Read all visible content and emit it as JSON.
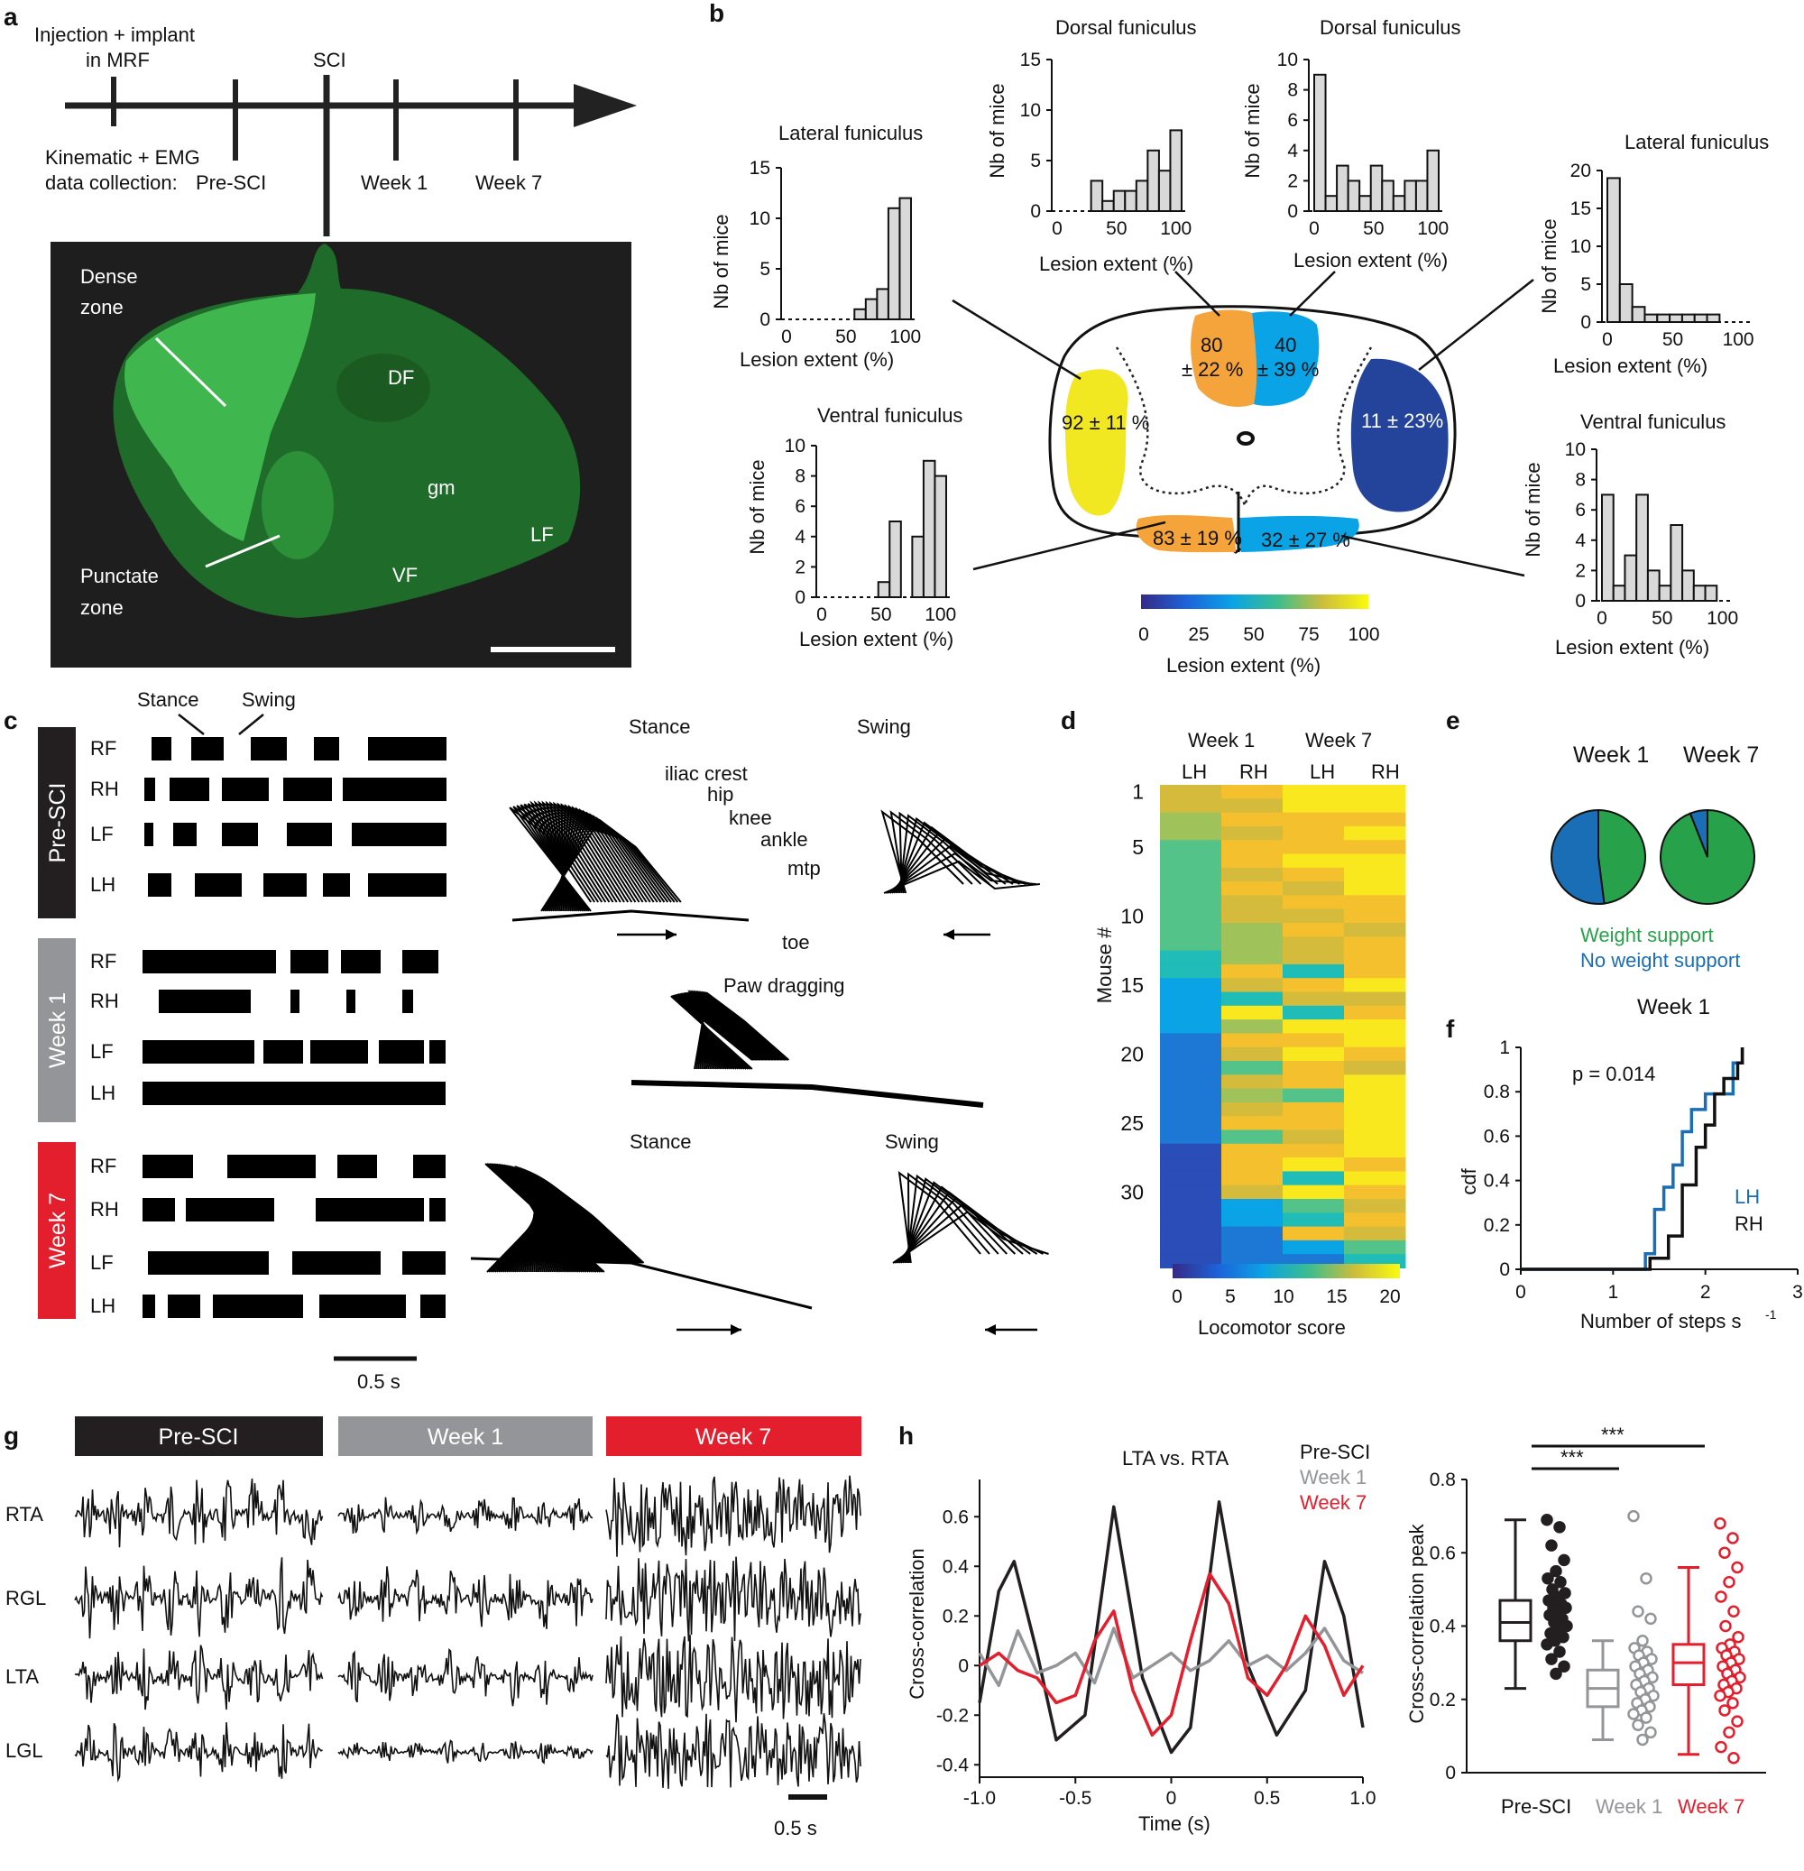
{
  "colors": {
    "pre_sci": "#231f20",
    "week1": "#939598",
    "week7": "#e31e2d",
    "weight_support": "#27a24a",
    "no_weight_support": "#1a6eb5",
    "lesion_yellow": "#f2e822",
    "lesion_orange": "#f4a43b",
    "lesion_cyan": "#0aa3e6",
    "lesion_navy": "#24449c",
    "section_green": "#3dbb4f"
  },
  "panel_a": {
    "letter": "a",
    "timeline_top_left": "Injection + implant",
    "timeline_top_left2": "in MRF",
    "timeline_sci": "SCI",
    "timeline_collection": "Kinematic + EMG",
    "timeline_collection2": "data collection:",
    "timepoints": [
      "Pre-SCI",
      "Week 1",
      "Week 7"
    ],
    "image_labels": {
      "dense": "Dense",
      "dense2": "zone",
      "punctate": "Punctate",
      "punctate2": "zone",
      "df": "DF",
      "gm": "gm",
      "lf": "LF",
      "vf": "VF"
    }
  },
  "panel_b": {
    "letter": "b",
    "hist_xlabel": "Lesion extent (%)",
    "hist_ylabel": "Nb of mice",
    "colorbar_ticks": [
      "0",
      "25",
      "50",
      "75",
      "100"
    ],
    "colorbar_label": "Lesion extent (%)",
    "region_values": {
      "left_lateral": "92 ± 11 %",
      "dorsal_left_a": "80",
      "dorsal_left_b": "± 22 %",
      "dorsal_right_a": "40",
      "dorsal_right_b": "± 39 %",
      "right_lateral": "11 ± 23%",
      "ventral_left": "83 ± 19 %",
      "ventral_right": "32 ± 27 %"
    }
  },
  "panel_c": {
    "letter": "c",
    "groups": [
      "Pre-SCI",
      "Week 1",
      "Week 7"
    ],
    "limbs": [
      "RF",
      "RH",
      "LF",
      "LH"
    ],
    "stance_label": "Stance",
    "swing_label": "Swing",
    "scale": "0.5 s",
    "stick_titles": {
      "stance1": "Stance",
      "swing1": "Swing",
      "drag": "Paw dragging",
      "stance2": "Stance",
      "swing2": "Swing"
    },
    "joints": [
      "iliac crest",
      "hip",
      "knee",
      "ankle",
      "mtp",
      "toe"
    ]
  },
  "panel_d": {
    "letter": "d",
    "col_groups": [
      "Week 1",
      "Week 7"
    ],
    "col_labels": [
      "LH",
      "RH",
      "LH",
      "RH"
    ],
    "ylabel": "Mouse #",
    "yticks": [
      "1",
      "5",
      "10",
      "15",
      "20",
      "25",
      "30"
    ],
    "colorbar_ticks": [
      "0",
      "5",
      "10",
      "15",
      "20"
    ],
    "colorbar_label": "Locomotor score"
  },
  "panel_e": {
    "letter": "e",
    "pie_titles": [
      "Week 1",
      "Week 7"
    ],
    "legend_weight": "Weight support",
    "legend_noweight": "No weight support"
  },
  "panel_f": {
    "letter": "f",
    "title": "Week 1",
    "pvalue": "p = 0.014",
    "ylabel": "cdf",
    "xlabel": "Number of steps s",
    "xlabel_sup": "-1",
    "legend_lh": "LH",
    "legend_rh": "RH",
    "xticks": [
      "0",
      "1",
      "2",
      "3"
    ],
    "yticks": [
      "0",
      "0.2",
      "0.4",
      "0.6",
      "0.8",
      "1"
    ]
  },
  "panel_g": {
    "letter": "g",
    "headers": [
      "Pre-SCI",
      "Week 1",
      "Week 7"
    ],
    "muscles": [
      "RTA",
      "RGL",
      "LTA",
      "LGL"
    ],
    "scale": "0.5 s"
  },
  "panel_h": {
    "letter": "h",
    "title": "LTA vs. RTA",
    "legend": [
      "Pre-SCI",
      "Week 1",
      "Week 7"
    ],
    "ylabel": "Cross-correlation",
    "xlabel": "Time (s)",
    "xticks": [
      "-1.0",
      "-0.5",
      "0",
      "0.5",
      "1.0"
    ],
    "yticks": [
      "-0.4",
      "-0.2",
      "0",
      "0.2",
      "0.4",
      "0.6"
    ],
    "box_ylabel": "Cross-correlation peak",
    "box_yticks": [
      "0",
      "0.2",
      "0.4",
      "0.6",
      "0.8"
    ],
    "box_xlabels": [
      "Pre-SCI",
      "Week 1",
      "Week 7"
    ],
    "sig": "***"
  },
  "chart_data": [
    {
      "type": "bar",
      "ylabel": "Nb of mice",
      "xlabel": "Lesion extent (%)",
      "title": "Lateral funiculus",
      "categories": [
        "0",
        "10",
        "20",
        "30",
        "40",
        "50",
        "60",
        "70",
        "80",
        "90",
        "100"
      ],
      "values": [
        0,
        0,
        0,
        0,
        0,
        0,
        1,
        2,
        3,
        11,
        12
      ],
      "ylim": [
        0,
        15
      ]
    },
    {
      "type": "bar",
      "ylabel": "Nb of mice",
      "xlabel": "Lesion extent (%)",
      "title": "Dorsal funiculus",
      "categories": [
        "0",
        "10",
        "20",
        "30",
        "40",
        "50",
        "60",
        "70",
        "80",
        "90",
        "100"
      ],
      "values": [
        0,
        0,
        0,
        3,
        1,
        2,
        2,
        3,
        6,
        4,
        8
      ],
      "ylim": [
        0,
        15
      ]
    },
    {
      "type": "bar",
      "ylabel": "Nb of mice",
      "xlabel": "Lesion extent (%)",
      "title": "Dorsal funiculus",
      "categories": [
        "0",
        "10",
        "20",
        "30",
        "40",
        "50",
        "60",
        "70",
        "80",
        "90",
        "100"
      ],
      "values": [
        9,
        1,
        3,
        2,
        1,
        3,
        2,
        1,
        2,
        2,
        4
      ],
      "ylim": [
        0,
        10
      ]
    },
    {
      "type": "bar",
      "ylabel": "Nb of mice",
      "xlabel": "Lesion extent (%)",
      "title": "Lateral funiculus",
      "categories": [
        "0",
        "10",
        "20",
        "30",
        "40",
        "50",
        "60",
        "70",
        "80",
        "90",
        "100"
      ],
      "values": [
        19,
        5,
        2,
        1,
        1,
        1,
        1,
        1,
        1,
        0,
        0
      ],
      "ylim": [
        0,
        20
      ]
    },
    {
      "type": "bar",
      "ylabel": "Nb of mice",
      "xlabel": "Lesion extent (%)",
      "title": "Ventral funiculus",
      "categories": [
        "0",
        "10",
        "20",
        "30",
        "40",
        "50",
        "60",
        "70",
        "80",
        "90",
        "100"
      ],
      "values": [
        0,
        0,
        0,
        0,
        0,
        1,
        5,
        0,
        4,
        9,
        8
      ],
      "ylim": [
        0,
        10
      ]
    },
    {
      "type": "bar",
      "ylabel": "Nb of mice",
      "xlabel": "Lesion extent (%)",
      "title": "Ventral funiculus",
      "categories": [
        "0",
        "10",
        "20",
        "30",
        "40",
        "50",
        "60",
        "70",
        "80",
        "90",
        "100"
      ],
      "values": [
        7,
        1,
        3,
        7,
        2,
        1,
        5,
        2,
        1,
        1,
        0
      ],
      "ylim": [
        0,
        10
      ]
    },
    {
      "type": "pie",
      "title": "Week 1",
      "labels": [
        "Weight support",
        "No weight support"
      ],
      "values": [
        48,
        52
      ]
    },
    {
      "type": "pie",
      "title": "Week 7",
      "labels": [
        "Weight support",
        "No weight support"
      ],
      "values": [
        94,
        6
      ]
    },
    {
      "type": "line",
      "title": "Week 1",
      "xlabel": "Number of steps s-1",
      "ylabel": "cdf",
      "xlim": [
        0,
        3
      ],
      "ylim": [
        0,
        1
      ],
      "series": [
        {
          "name": "LH",
          "x": [
            1.35,
            1.45,
            1.55,
            1.65,
            1.75,
            1.85,
            2.0,
            2.3,
            2.4
          ],
          "y": [
            0.07,
            0.27,
            0.37,
            0.47,
            0.62,
            0.72,
            0.79,
            0.93,
            1.0
          ]
        },
        {
          "name": "RH",
          "x": [
            1.4,
            1.6,
            1.75,
            1.9,
            2.0,
            2.1,
            2.2,
            2.35,
            2.4
          ],
          "y": [
            0.05,
            0.15,
            0.38,
            0.55,
            0.65,
            0.79,
            0.86,
            0.93,
            1.0
          ]
        }
      ]
    },
    {
      "type": "line",
      "title": "LTA vs. RTA",
      "xlabel": "Time (s)",
      "ylabel": "Cross-correlation",
      "xlim": [
        -1,
        1
      ],
      "ylim": [
        -0.4,
        0.7
      ],
      "series": [
        {
          "name": "Pre-SCI",
          "x": [
            -1,
            -0.9,
            -0.82,
            -0.7,
            -0.6,
            -0.45,
            -0.3,
            -0.15,
            0,
            0.1,
            0.25,
            0.4,
            0.55,
            0.7,
            0.8,
            0.9,
            1.0
          ],
          "y": [
            -0.15,
            0.3,
            0.42,
            0.05,
            -0.3,
            -0.2,
            0.64,
            -0.05,
            -0.35,
            -0.25,
            0.66,
            0.0,
            -0.28,
            -0.1,
            0.42,
            0.2,
            -0.25
          ]
        },
        {
          "name": "Week 1",
          "x": [
            -1,
            -0.9,
            -0.8,
            -0.7,
            -0.6,
            -0.5,
            -0.4,
            -0.3,
            -0.2,
            -0.1,
            0,
            0.1,
            0.2,
            0.3,
            0.4,
            0.5,
            0.6,
            0.7,
            0.8,
            0.9,
            1.0
          ],
          "y": [
            0.05,
            -0.08,
            0.14,
            -0.03,
            0.0,
            0.05,
            -0.07,
            0.15,
            -0.05,
            0.0,
            0.05,
            -0.02,
            0.02,
            0.1,
            0.0,
            0.04,
            -0.02,
            0.05,
            0.15,
            0.02,
            -0.03
          ]
        },
        {
          "name": "Week 7",
          "x": [
            -1,
            -0.9,
            -0.8,
            -0.7,
            -0.6,
            -0.5,
            -0.4,
            -0.3,
            -0.2,
            -0.1,
            0,
            0.1,
            0.2,
            0.3,
            0.4,
            0.5,
            0.6,
            0.7,
            0.8,
            0.9,
            1.0
          ],
          "y": [
            0.0,
            0.05,
            -0.02,
            -0.05,
            -0.15,
            -0.12,
            0.1,
            0.22,
            -0.1,
            -0.28,
            -0.2,
            0.1,
            0.37,
            0.25,
            -0.05,
            -0.12,
            0.0,
            0.2,
            0.08,
            -0.12,
            0.0
          ]
        }
      ]
    },
    {
      "type": "scatter",
      "title": "",
      "ylabel": "Cross-correlation peak",
      "ylim": [
        0,
        0.8
      ],
      "categories": [
        "Pre-SCI",
        "Week 1",
        "Week 7"
      ],
      "series": [
        {
          "name": "Pre-SCI",
          "box": [
            0.23,
            0.36,
            0.41,
            0.47,
            0.69
          ],
          "values": [
            0.69,
            0.67,
            0.62,
            0.58,
            0.55,
            0.53,
            0.52,
            0.5,
            0.49,
            0.48,
            0.47,
            0.46,
            0.45,
            0.45,
            0.44,
            0.43,
            0.42,
            0.41,
            0.4,
            0.39,
            0.38,
            0.37,
            0.36,
            0.35,
            0.33,
            0.31,
            0.29,
            0.27
          ]
        },
        {
          "name": "Week 1",
          "box": [
            0.09,
            0.18,
            0.23,
            0.28,
            0.36
          ],
          "values": [
            0.7,
            0.53,
            0.44,
            0.42,
            0.36,
            0.34,
            0.33,
            0.32,
            0.31,
            0.3,
            0.29,
            0.28,
            0.27,
            0.26,
            0.25,
            0.24,
            0.23,
            0.22,
            0.21,
            0.2,
            0.19,
            0.18,
            0.17,
            0.16,
            0.15,
            0.13,
            0.11,
            0.09
          ]
        },
        {
          "name": "Week 7",
          "box": [
            0.05,
            0.24,
            0.3,
            0.35,
            0.56
          ],
          "values": [
            0.68,
            0.64,
            0.6,
            0.56,
            0.52,
            0.48,
            0.44,
            0.4,
            0.37,
            0.35,
            0.34,
            0.33,
            0.32,
            0.31,
            0.3,
            0.29,
            0.28,
            0.27,
            0.26,
            0.25,
            0.24,
            0.23,
            0.22,
            0.21,
            0.19,
            0.17,
            0.14,
            0.11,
            0.07,
            0.04
          ]
        }
      ]
    }
  ]
}
